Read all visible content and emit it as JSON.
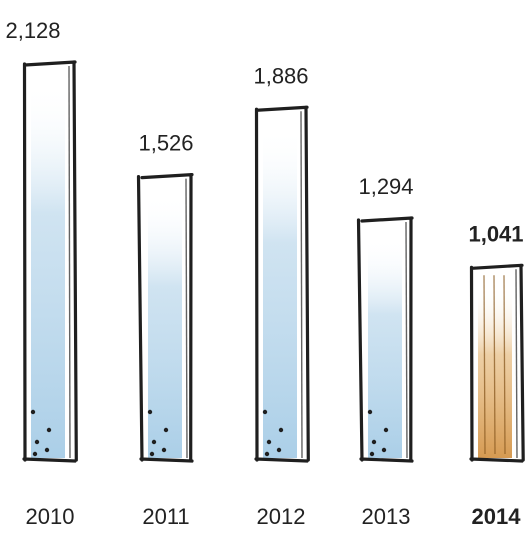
{
  "chart_data": {
    "type": "bar",
    "categories": [
      "2010",
      "2011",
      "2012",
      "2013",
      "2014"
    ],
    "values": [
      2128,
      1526,
      1886,
      1294,
      1041
    ],
    "value_labels": [
      "2,128",
      "1,526",
      "1,886",
      "1,294",
      "1,041"
    ],
    "ylim": [
      0,
      2128
    ],
    "grid": false,
    "highlight_index": 4,
    "colors": {
      "bar_fill": "#a9cde6",
      "bar_outline": "#1f1f1f",
      "highlight_fill": "#d9a25a",
      "highlight_text": "#7a5a2e",
      "text": "#222222",
      "dot": "#1f1f1f"
    }
  }
}
